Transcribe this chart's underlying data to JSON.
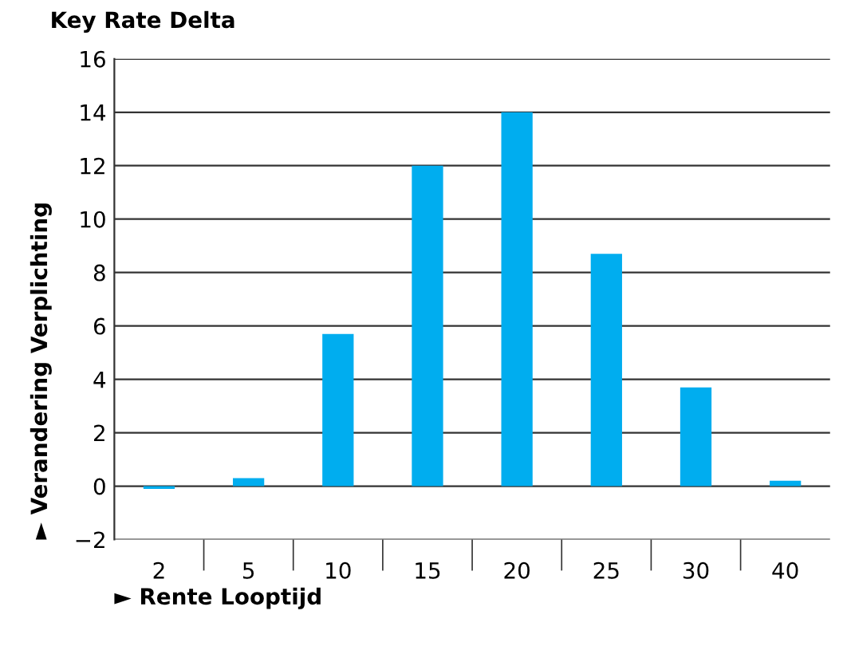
{
  "chart_data": {
    "type": "bar",
    "title": "Key Rate Delta",
    "xlabel": "► Rente Looptijd",
    "ylabel": "► Verandering Verplichting",
    "categories": [
      "2",
      "5",
      "10",
      "15",
      "20",
      "25",
      "30",
      "40"
    ],
    "values": [
      -0.1,
      0.3,
      5.7,
      12.0,
      14.0,
      8.7,
      3.7,
      0.2
    ],
    "color": "#00adef",
    "ylim": [
      -2,
      16
    ],
    "yticks": [
      -2,
      0,
      2,
      4,
      6,
      8,
      10,
      12,
      14,
      16
    ],
    "grid": "y",
    "legend": false
  }
}
